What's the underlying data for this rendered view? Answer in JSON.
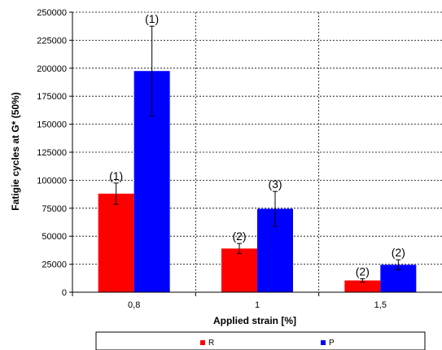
{
  "chart_data": {
    "type": "bar",
    "title": "",
    "xlabel": "Applied strain [%]",
    "ylabel": "Fatigie cycles at G* (50%)",
    "ylim": [
      0,
      250000
    ],
    "yticks": [
      0,
      25000,
      50000,
      75000,
      100000,
      125000,
      150000,
      175000,
      200000,
      225000,
      250000
    ],
    "ytick_labels": [
      "0",
      "25000",
      "50000",
      "75000",
      "100000",
      "125000",
      "150000",
      "175000",
      "200000",
      "225000",
      "250000"
    ],
    "categories": [
      "0,8",
      "1",
      "1,5"
    ],
    "grid": true,
    "legend_position": "bottom",
    "series": [
      {
        "name": "R",
        "color": "#ff0000",
        "values": [
          88000,
          39000,
          10500
        ],
        "errors": [
          9500,
          4500,
          1500
        ],
        "annotations": [
          "(1)",
          "(2)",
          "(2)"
        ]
      },
      {
        "name": "P",
        "color": "#0000ff",
        "values": [
          197500,
          74500,
          24500
        ],
        "errors": [
          40000,
          15500,
          4500
        ],
        "annotations": [
          "(1)",
          "(3)",
          "(2)"
        ]
      }
    ]
  }
}
